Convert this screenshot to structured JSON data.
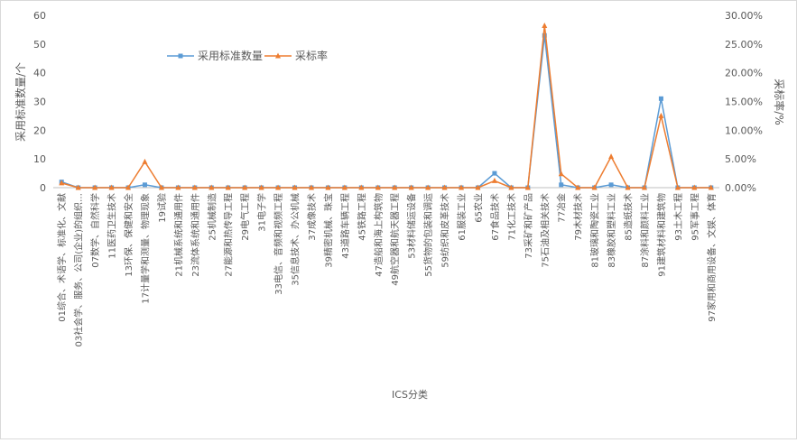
{
  "chart_data": {
    "type": "line",
    "title": "",
    "xlabel": "ICS分类",
    "ylabel": "采用标准数量/个",
    "y2label": "采标率/%",
    "ylim": [
      0,
      60
    ],
    "y2lim": [
      0,
      30
    ],
    "yticks": [
      "0",
      "10",
      "20",
      "30",
      "40",
      "50",
      "60"
    ],
    "y2ticks": [
      "0.00%",
      "5.00%",
      "10.00%",
      "15.00%",
      "20.00%",
      "25.00%",
      "30.00%"
    ],
    "grid": false,
    "legend_position": "top-left",
    "categories": [
      "01综合、术语学、标准化、文献",
      "03社会学、服务、公司(企业)的组织…",
      "07数学、自然科学",
      "11医药卫生技术",
      "13环保、保健和安全",
      "17计量学和测量、物理现象",
      "19试验",
      "21机械系统和通用件",
      "23流体系统和通用件",
      "25机械制造",
      "27能源和热传导工程",
      "29电气工程",
      "31电子学",
      "33电信、音频和视频工程",
      "35信息技术、办公机械",
      "37成像技术",
      "39精密机械、珠宝",
      "43道路车辆工程",
      "45铁路工程",
      "47造船和海上构筑物",
      "49航空器和航天器工程",
      "53材料储运设备",
      "55货物的包装和调运",
      "59纺织和皮革技术",
      "61服装工业",
      "65农业",
      "67食品技术",
      "71化工技术",
      "73采矿和矿产品",
      "75石油及相关技术",
      "77冶金",
      "79木材技术",
      "81玻璃和陶瓷工业",
      "83橡胶和塑料工业",
      "85造纸技术",
      "87涂料和颜料工业",
      "91建筑材料和建筑物",
      "93土木工程",
      "95军事工程",
      "97家用和商用设备、文娱、体育"
    ],
    "series": [
      {
        "name": "采用标准数量",
        "axis": "left",
        "color": "#5B9BD5",
        "marker": "square",
        "values": [
          2,
          0,
          0,
          0,
          0,
          1,
          0,
          0,
          0,
          0,
          0,
          0,
          0,
          0,
          0,
          0,
          0,
          0,
          0,
          0,
          0,
          0,
          0,
          0,
          0,
          0,
          5,
          0,
          0,
          53,
          1,
          0,
          0,
          1,
          0,
          0,
          31,
          0,
          0,
          0
        ]
      },
      {
        "name": "采标率",
        "axis": "right",
        "color": "#ED7D31",
        "marker": "triangle",
        "values": [
          0.8,
          0,
          0,
          0,
          0,
          4.5,
          0,
          0,
          0,
          0,
          0,
          0,
          0,
          0,
          0,
          0,
          0,
          0,
          0,
          0,
          0,
          0,
          0,
          0,
          0,
          0,
          1.2,
          0,
          0,
          28.2,
          2.4,
          0,
          0,
          5.4,
          0,
          0,
          12.5,
          0,
          0,
          0
        ]
      }
    ]
  }
}
